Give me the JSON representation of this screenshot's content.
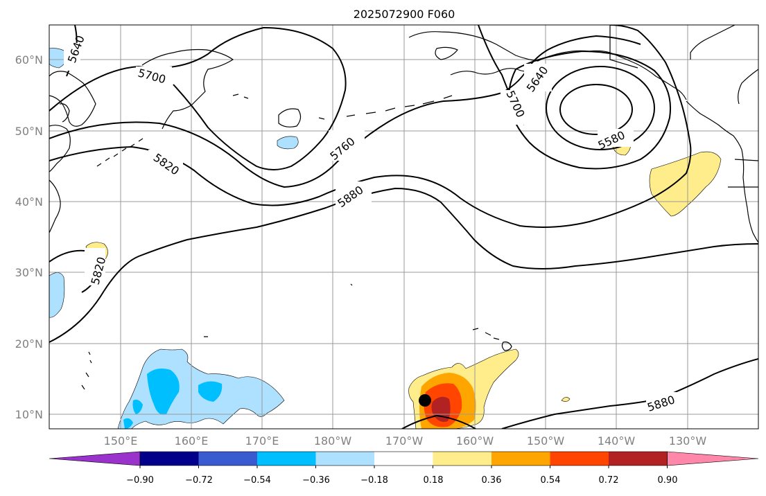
{
  "title": "2025072900 F060",
  "lat_labels": [
    "60°N",
    "50°N",
    "40°N",
    "30°N",
    "20°N",
    "10°N"
  ],
  "lon_labels": [
    "150°E",
    "160°E",
    "170°E",
    "180°W",
    "170°W",
    "160°W",
    "150°W",
    "140°W",
    "130°W"
  ],
  "contour_labels": {
    "c5640a": "5640",
    "c5700a": "5700",
    "c5640b": "5640",
    "c5700b": "5700",
    "c5580": "5580",
    "c5760": "5760",
    "c5820a": "5820",
    "c5880a": "5880",
    "c5820b": "5820",
    "c5880b": "5880"
  },
  "colorbar": {
    "ticks": [
      "−0.90",
      "−0.72",
      "−0.54",
      "−0.36",
      "−0.18",
      "0.18",
      "0.36",
      "0.54",
      "0.72",
      "0.90"
    ],
    "colors": [
      "#9933cc",
      "#00008b",
      "#3a5bcf",
      "#00bfff",
      "#aee0ff",
      "#ffffff",
      "#ffec8b",
      "#ffa500",
      "#ff4500",
      "#b22222",
      "#ff88aa"
    ]
  },
  "colors": {
    "neg_light": "#aee0ff",
    "neg_mid": "#00bfff",
    "pos_light": "#ffec8b",
    "pos_mid": "#ffa500",
    "pos_high": "#ff4500",
    "pos_top": "#b22222"
  }
}
